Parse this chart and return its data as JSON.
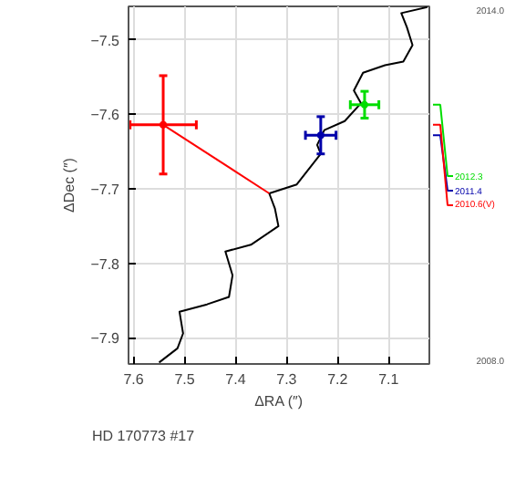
{
  "chart_data": {
    "type": "line",
    "xlabel": "ΔRA (″)",
    "ylabel": "ΔDec (″)",
    "xlim": [
      7.61,
      7.02
    ],
    "ylim": [
      -7.935,
      -7.455
    ],
    "xticks": [
      7.6,
      7.5,
      7.4,
      7.3,
      7.2,
      7.1
    ],
    "yticks": [
      -7.9,
      -7.8,
      -7.7,
      -7.6,
      -7.5
    ],
    "grid": true,
    "annotations": [
      "HD 170773 #17",
      "2014.0",
      "2008.0"
    ],
    "series": [
      {
        "color": "#000000",
        "line_style": "solid",
        "x": [
          7.024,
          7.075,
          7.064,
          7.053,
          7.071,
          7.107,
          7.15,
          7.168,
          7.154,
          7.186,
          7.226,
          7.24,
          7.233,
          7.28,
          7.334,
          7.323,
          7.316,
          7.37,
          7.42,
          7.406,
          7.413,
          7.456,
          7.51,
          7.503,
          7.514,
          7.55
        ],
        "values": [
          -7.456,
          -7.464,
          -7.483,
          -7.507,
          -7.529,
          -7.534,
          -7.544,
          -7.568,
          -7.585,
          -7.609,
          -7.621,
          -7.641,
          -7.653,
          -7.694,
          -7.706,
          -7.726,
          -7.75,
          -7.775,
          -7.784,
          -7.816,
          -7.845,
          -7.855,
          -7.865,
          -7.894,
          -7.914,
          -7.933
        ]
      },
      {
        "color": "#ff0000",
        "line_style": "solid",
        "x": [
          7.542,
          7.334
        ],
        "values": [
          -7.614,
          -7.706
        ]
      },
      {
        "type": "scatter",
        "name": "2012.3",
        "color": "#00dd00",
        "marker": "circle",
        "x": [
          7.147
        ],
        "values": [
          -7.587
        ],
        "errors": [
          0.018
        ],
        "xerrors": [
          0.028
        ]
      },
      {
        "type": "scatter",
        "name": "2011.4",
        "color": "#0000aa",
        "marker": "circle",
        "x": [
          7.233
        ],
        "values": [
          -7.628
        ],
        "errors": [
          0.025
        ],
        "xerrors": [
          0.03
        ]
      },
      {
        "type": "scatter",
        "name": "2010.6(V)",
        "color": "#ff0000",
        "marker": "circle",
        "x": [
          7.542
        ],
        "values": [
          -7.614
        ],
        "errors": [
          0.066
        ],
        "xerrors": [
          0.065
        ]
      }
    ]
  }
}
